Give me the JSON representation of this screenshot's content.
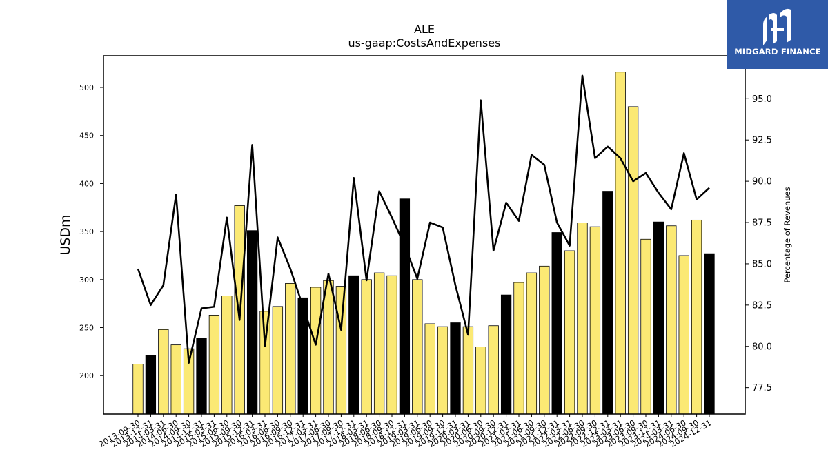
{
  "chart_data": {
    "type": "bar",
    "title": "ALE",
    "subtitle": "us-gaap:CostsAndExpenses",
    "ylabel": "USDm",
    "y2label": "Percentage of Revenues",
    "ylim": [
      160,
      533
    ],
    "y2lim": [
      75.9,
      97.6
    ],
    "yticks": [
      200,
      250,
      300,
      350,
      400,
      450,
      500
    ],
    "y2ticks": [
      "77.5",
      "80.0",
      "82.5",
      "85.0",
      "87.5",
      "90.0",
      "92.5",
      "95.0"
    ],
    "legend": "none",
    "grid": false,
    "categories": [
      "2013-09-30",
      "2013-12-31",
      "2014-03-31",
      "2014-06-30",
      "2014-09-30",
      "2014-12-31",
      "2015-03-31",
      "2015-06-30",
      "2015-09-30",
      "2015-12-31",
      "2016-03-31",
      "2016-06-30",
      "2016-09-30",
      "2016-12-31",
      "2017-03-31",
      "2017-06-30",
      "2017-09-30",
      "2017-12-31",
      "2018-03-31",
      "2018-06-30",
      "2018-09-30",
      "2018-12-31",
      "2019-03-31",
      "2019-06-30",
      "2019-09-30",
      "2019-12-31",
      "2020-03-31",
      "2020-06-30",
      "2020-09-30",
      "2020-12-31",
      "2021-03-31",
      "2021-06-30",
      "2021-09-30",
      "2021-12-31",
      "2022-03-31",
      "2022-06-30",
      "2022-09-30",
      "2022-12-31",
      "2023-03-31",
      "2023-06-30",
      "2023-09-30",
      "2023-12-31",
      "2024-03-31",
      "2024-06-30",
      "2024-09-30",
      "2024-12-31"
    ],
    "series": [
      {
        "type": "bar",
        "values": [
          212,
          221,
          248,
          232,
          228,
          239,
          263,
          283,
          377,
          351,
          267,
          272,
          296,
          281,
          292,
          299,
          293,
          304,
          300,
          307,
          304,
          384,
          300,
          254,
          251,
          255,
          251,
          230,
          252,
          284,
          297,
          307,
          314,
          349,
          330,
          359,
          355,
          392,
          516,
          480,
          342,
          360,
          356,
          325,
          362,
          327
        ],
        "highlight": [
          false,
          true,
          false,
          false,
          false,
          true,
          false,
          false,
          false,
          true,
          false,
          false,
          false,
          true,
          false,
          false,
          false,
          true,
          false,
          false,
          false,
          true,
          false,
          false,
          false,
          true,
          false,
          false,
          false,
          true,
          false,
          false,
          false,
          true,
          false,
          false,
          false,
          true,
          false,
          false,
          false,
          true,
          false,
          false,
          false,
          true
        ]
      },
      {
        "type": "line",
        "axis": "secondary",
        "values": [
          84.7,
          82.5,
          83.7,
          89.2,
          79.0,
          82.3,
          82.4,
          87.8,
          81.6,
          92.2,
          80.0,
          86.6,
          84.7,
          82.4,
          80.1,
          84.4,
          81.0,
          90.2,
          84.0,
          89.4,
          87.8,
          86.1,
          84.1,
          87.5,
          87.2,
          83.7,
          80.7,
          94.9,
          85.8,
          88.7,
          87.6,
          91.6,
          91.0,
          87.5,
          86.1,
          96.4,
          91.4,
          92.1,
          91.4,
          90.0,
          90.5,
          89.3,
          88.3,
          91.7,
          88.9,
          89.6
        ]
      }
    ],
    "colors": {
      "bar": "#fbe974",
      "bar_highlight": "#000000",
      "bar_edge": "#000000",
      "line": "#000000"
    }
  },
  "logo": {
    "text": "MIDGARD FINANCE",
    "background": "#2f5aa8"
  }
}
